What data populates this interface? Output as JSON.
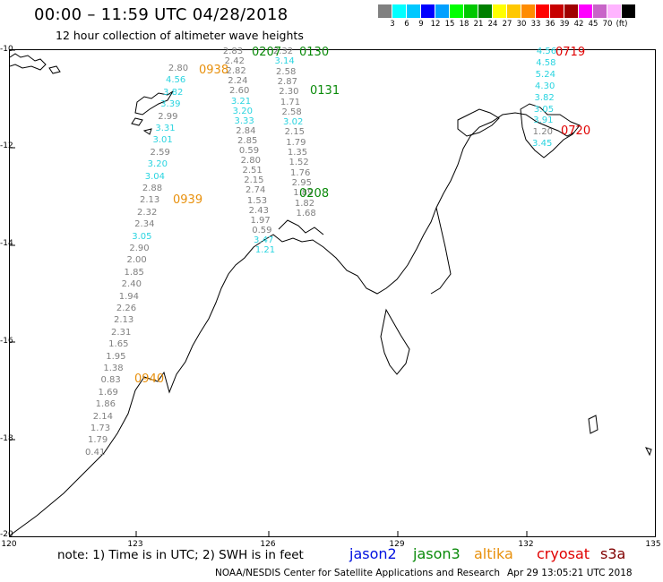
{
  "header": {
    "title": "00:00 – 11:59 UTC 04/28/2018",
    "subtitle": "12 hour collection of altimeter wave heights"
  },
  "scale": {
    "colors": [
      "#808080",
      "#00ffff",
      "#00c8ff",
      "#0000ff",
      "#00a0ff",
      "#00ff00",
      "#00c800",
      "#008000",
      "#ffff00",
      "#ffc800",
      "#ff8c00",
      "#ff0000",
      "#c80000",
      "#a00000",
      "#ff00ff",
      "#c864c8",
      "#ffb4ff",
      "#000000"
    ],
    "labels": [
      "3",
      "6",
      "9",
      "12",
      "15",
      "18",
      "21",
      "24",
      "27",
      "30",
      "33",
      "36",
      "39",
      "42",
      "45",
      "70",
      "(ft)"
    ]
  },
  "axes": {
    "lat_labels": [
      "-10",
      "-12",
      "-14",
      "-16",
      "-18",
      "-20"
    ],
    "lon_labels": [
      "120",
      "123",
      "126",
      "129",
      "132",
      "135"
    ]
  },
  "colors": {
    "altika": "#e8900c",
    "jason3": "#0a8a0a",
    "cryosat": "#e00000",
    "light_value": "#2ad4e0",
    "gray_value": "#808080",
    "jason2": "#0010e0",
    "s3a": "#800000"
  },
  "track_labels": [
    {
      "text": "0938",
      "sat": "altika"
    },
    {
      "text": "0939",
      "sat": "altika"
    },
    {
      "text": "0940",
      "sat": "altika"
    },
    {
      "text": "0207",
      "sat": "jason3"
    },
    {
      "text": "0130",
      "sat": "jason3"
    },
    {
      "text": "0131",
      "sat": "jason3"
    },
    {
      "text": "0208",
      "sat": "jason3"
    },
    {
      "text": "0719",
      "sat": "cryosat"
    },
    {
      "text": "0720",
      "sat": "cryosat"
    }
  ],
  "wave_heights": {
    "track_altika": [
      {
        "v": "2.80",
        "c": "g"
      },
      {
        "v": "4.56",
        "c": "c"
      },
      {
        "v": "3.82",
        "c": "c"
      },
      {
        "v": "3.39",
        "c": "c"
      },
      {
        "v": "2.99",
        "c": "g"
      },
      {
        "v": "3.31",
        "c": "c"
      },
      {
        "v": "3.01",
        "c": "c"
      },
      {
        "v": "2.59",
        "c": "g"
      },
      {
        "v": "3.20",
        "c": "c"
      },
      {
        "v": "3.04",
        "c": "c"
      },
      {
        "v": "2.88",
        "c": "g"
      },
      {
        "v": "2.13",
        "c": "g"
      },
      {
        "v": "2.32",
        "c": "g"
      },
      {
        "v": "2.34",
        "c": "g"
      },
      {
        "v": "3.05",
        "c": "c"
      },
      {
        "v": "2.90",
        "c": "g"
      },
      {
        "v": "2.00",
        "c": "g"
      },
      {
        "v": "1.85",
        "c": "g"
      },
      {
        "v": "2.40",
        "c": "g"
      },
      {
        "v": "1.94",
        "c": "g"
      },
      {
        "v": "2.26",
        "c": "g"
      },
      {
        "v": "2.13",
        "c": "g"
      },
      {
        "v": "2.31",
        "c": "g"
      },
      {
        "v": "1.65",
        "c": "g"
      },
      {
        "v": "1.95",
        "c": "g"
      },
      {
        "v": "1.38",
        "c": "g"
      },
      {
        "v": "0.83",
        "c": "g"
      },
      {
        "v": "1.69",
        "c": "g"
      },
      {
        "v": "1.86",
        "c": "g"
      },
      {
        "v": "2.14",
        "c": "g"
      },
      {
        "v": "1.73",
        "c": "g"
      },
      {
        "v": "1.79",
        "c": "g"
      },
      {
        "v": "0.41",
        "c": "g"
      }
    ],
    "track_jason3_a": [
      {
        "v": "2.83",
        "c": "g"
      },
      {
        "v": "2.42",
        "c": "g"
      },
      {
        "v": "2.82",
        "c": "g"
      },
      {
        "v": "2.24",
        "c": "g"
      },
      {
        "v": "2.60",
        "c": "g"
      },
      {
        "v": "3.21",
        "c": "c"
      },
      {
        "v": "3.20",
        "c": "c"
      },
      {
        "v": "3.33",
        "c": "c"
      },
      {
        "v": "2.84",
        "c": "g"
      },
      {
        "v": "2.85",
        "c": "g"
      },
      {
        "v": "0.59",
        "c": "g"
      },
      {
        "v": "2.80",
        "c": "g"
      },
      {
        "v": "2.51",
        "c": "g"
      },
      {
        "v": "2.15",
        "c": "g"
      },
      {
        "v": "2.74",
        "c": "g"
      },
      {
        "v": "1.53",
        "c": "g"
      },
      {
        "v": "2.43",
        "c": "g"
      },
      {
        "v": "1.97",
        "c": "g"
      },
      {
        "v": "0.59",
        "c": "g"
      },
      {
        "v": "3.47",
        "c": "c"
      },
      {
        "v": "1.21",
        "c": "c"
      }
    ],
    "track_jason3_b": [
      {
        "v": "2.32",
        "c": "g"
      },
      {
        "v": "3.14",
        "c": "c"
      },
      {
        "v": "2.58",
        "c": "g"
      },
      {
        "v": "2.87",
        "c": "g"
      },
      {
        "v": "2.30",
        "c": "g"
      },
      {
        "v": "1.71",
        "c": "g"
      },
      {
        "v": "2.58",
        "c": "g"
      },
      {
        "v": "3.02",
        "c": "c"
      },
      {
        "v": "2.15",
        "c": "g"
      },
      {
        "v": "1.79",
        "c": "g"
      },
      {
        "v": "1.35",
        "c": "g"
      },
      {
        "v": "1.52",
        "c": "g"
      },
      {
        "v": "1.76",
        "c": "g"
      },
      {
        "v": "2.95",
        "c": "g"
      },
      {
        "v": "1.89",
        "c": "g"
      },
      {
        "v": "1.82",
        "c": "g"
      },
      {
        "v": "1.68",
        "c": "g"
      }
    ],
    "track_cryosat": [
      {
        "v": "4.56",
        "c": "c"
      },
      {
        "v": "4.58",
        "c": "c"
      },
      {
        "v": "5.24",
        "c": "c"
      },
      {
        "v": "4.30",
        "c": "c"
      },
      {
        "v": "3.82",
        "c": "c"
      },
      {
        "v": "3.05",
        "c": "c"
      },
      {
        "v": "3.91",
        "c": "c"
      },
      {
        "v": "1.20",
        "c": "g"
      },
      {
        "v": "3.45",
        "c": "c"
      }
    ]
  },
  "footer": {
    "note": "note: 1) Time is in UTC; 2) SWH is in feet",
    "satellites": [
      {
        "name": "jason2",
        "sat": "jason2"
      },
      {
        "name": "jason3",
        "sat": "jason3"
      },
      {
        "name": "altika",
        "sat": "altika"
      },
      {
        "name": "cryosat",
        "sat": "cryosat"
      },
      {
        "name": "s3a",
        "sat": "s3a"
      }
    ],
    "credit": "NOAA/NESDIS Center for Satellite Applications and Research",
    "timestamp": "Apr 29 13:05:21 UTC 2018"
  }
}
